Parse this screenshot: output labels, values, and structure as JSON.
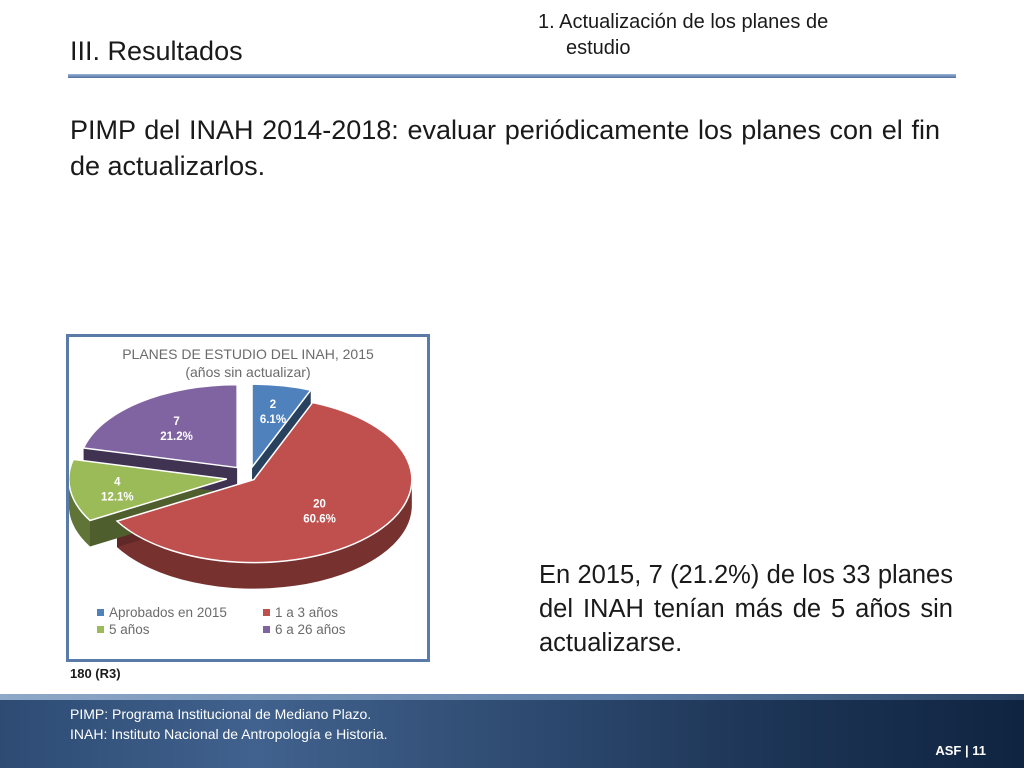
{
  "header": {
    "section_title": "III. Resultados",
    "topic_line1": "1. Actualización de los planes de",
    "topic_line2": "estudio"
  },
  "headline": "PIMP del INAH 2014-2018: evaluar periódicamente los planes con el fin de actualizarlos.",
  "chart_data": {
    "type": "pie",
    "title": "PLANES DE ESTUDIO DEL INAH, 2015",
    "subtitle": "(años sin actualizar)",
    "categories": [
      "Aprobados en 2015",
      "1 a 3 años",
      "5 años",
      "6 a 26 años"
    ],
    "values": [
      2,
      20,
      4,
      7
    ],
    "percent_labels": [
      "6.1%",
      "60.6%",
      "12.1%",
      "21.2%"
    ],
    "colors": [
      "#4f81bd",
      "#c0504d",
      "#9bbb59",
      "#8064a2"
    ],
    "exploded": "all",
    "style": "3d",
    "legend_position": "bottom"
  },
  "source_note": "180 (R3)",
  "callout": "En 2015, 7 (21.2%) de los 33 planes del INAH tenían más de 5 años sin actualizarse.",
  "footnotes": [
    "PIMP: Programa Institucional de Mediano Plazo.",
    "INAH: Instituto Nacional de Antropología e Historia."
  ],
  "footer": {
    "org": "ASF",
    "separator": "|",
    "page_number": "11"
  }
}
